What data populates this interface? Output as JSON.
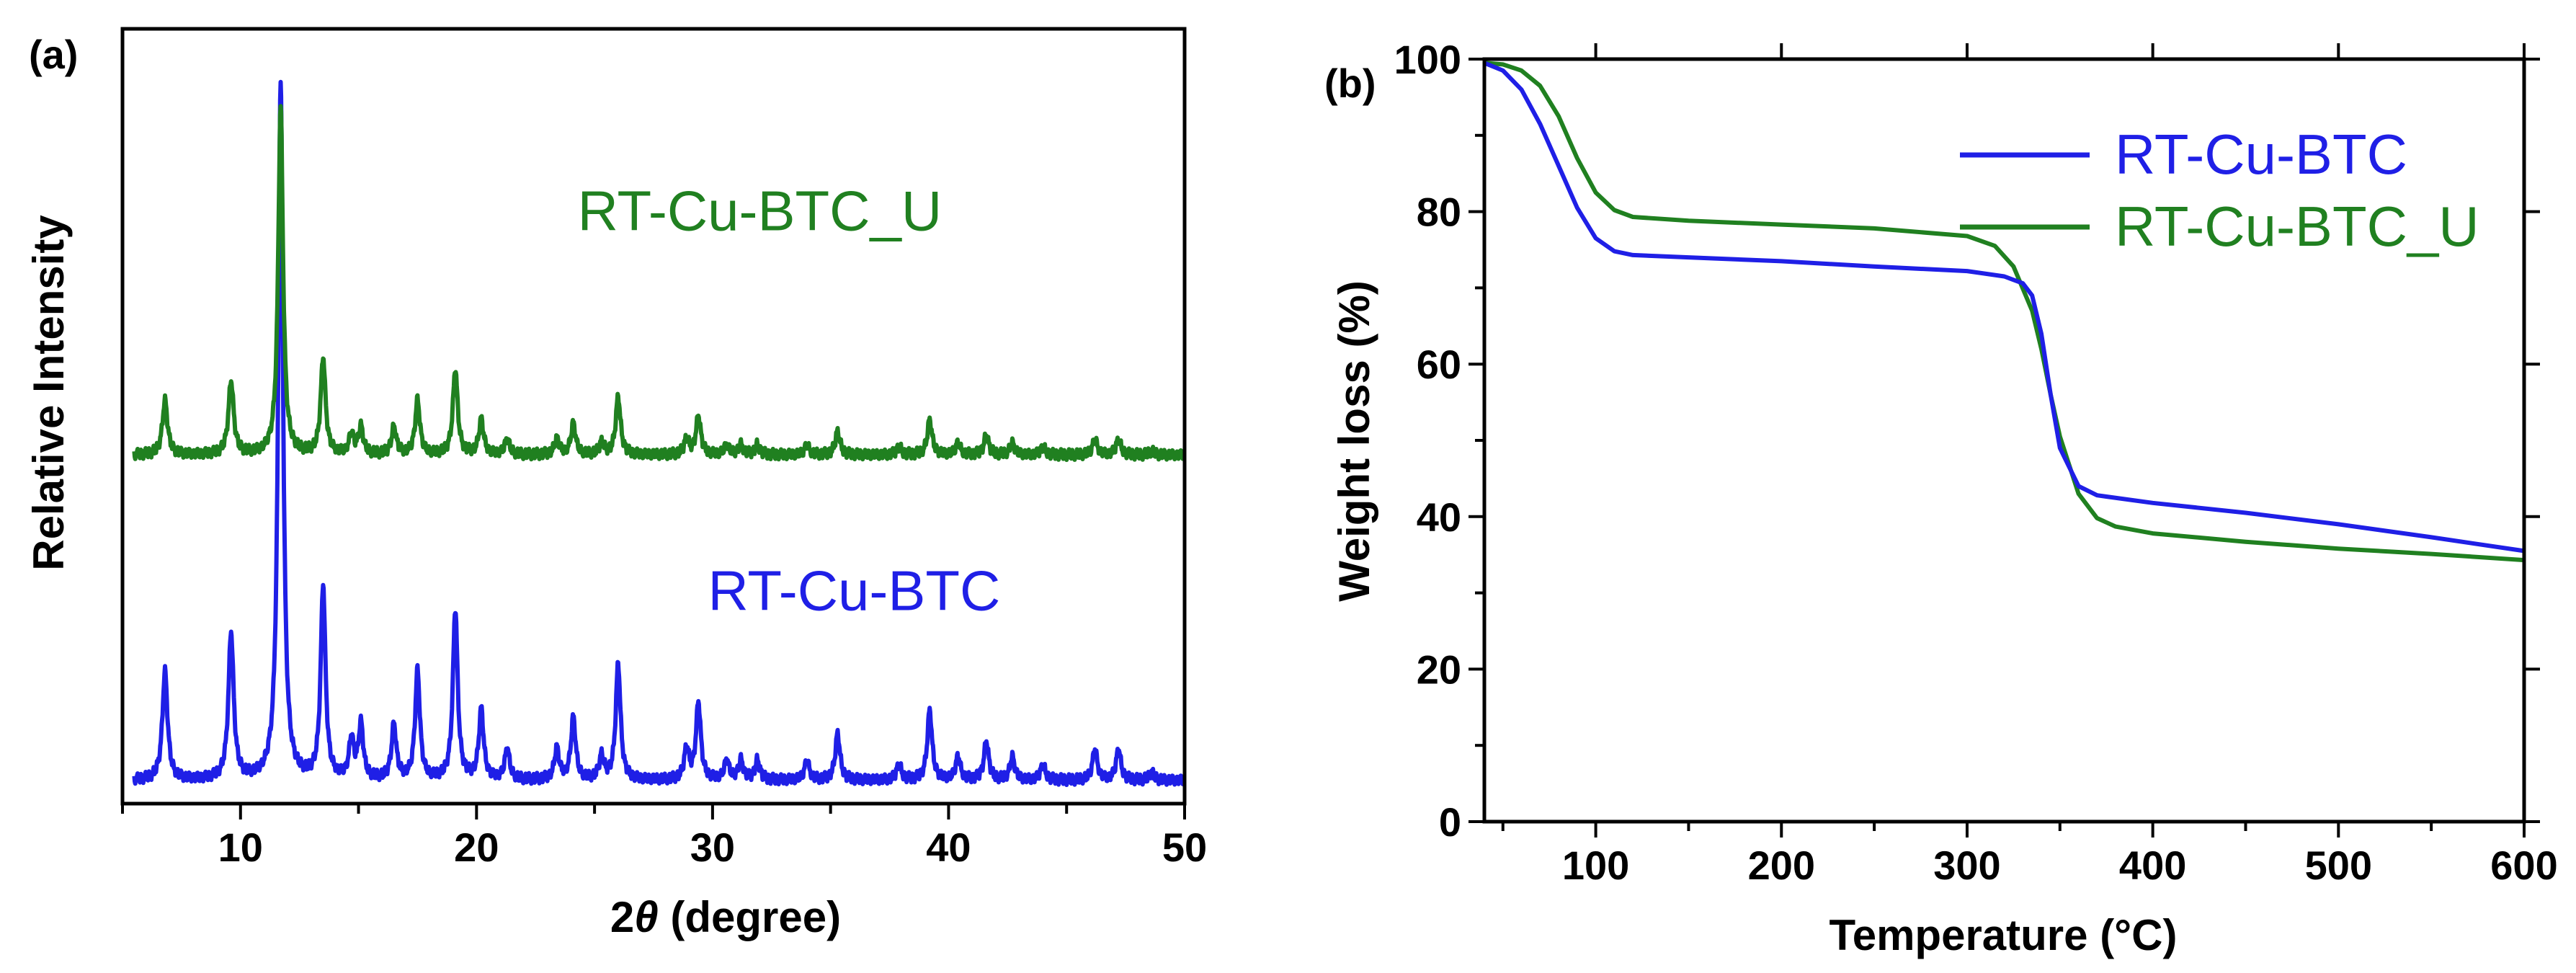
{
  "colors": {
    "blue": "#1f1fe6",
    "green": "#208020",
    "axis": "#000000"
  },
  "chart_data": [
    {
      "panel": "(a)",
      "type": "line",
      "title": "",
      "xlabel_pre": "2",
      "xlabel_theta": "θ",
      "xlabel_post": " (degree)",
      "ylabel": "Relative Intensity",
      "xlim": [
        5,
        50
      ],
      "xticks": [
        10,
        20,
        30,
        40,
        50
      ],
      "yticks_labeled": false,
      "grid": false,
      "peaks": [
        {
          "x": 6.8,
          "h": 0.14,
          "w": 0.13
        },
        {
          "x": 9.6,
          "h": 0.19,
          "w": 0.13
        },
        {
          "x": 11.7,
          "h": 0.9,
          "w": 0.12
        },
        {
          "x": 13.5,
          "h": 0.25,
          "w": 0.12
        },
        {
          "x": 14.7,
          "h": 0.05,
          "w": 0.12
        },
        {
          "x": 15.1,
          "h": 0.07,
          "w": 0.12
        },
        {
          "x": 16.5,
          "h": 0.07,
          "w": 0.12
        },
        {
          "x": 17.5,
          "h": 0.14,
          "w": 0.12
        },
        {
          "x": 19.1,
          "h": 0.22,
          "w": 0.12
        },
        {
          "x": 20.2,
          "h": 0.09,
          "w": 0.12
        },
        {
          "x": 21.3,
          "h": 0.04,
          "w": 0.12
        },
        {
          "x": 23.4,
          "h": 0.04,
          "w": 0.12
        },
        {
          "x": 24.1,
          "h": 0.08,
          "w": 0.12
        },
        {
          "x": 25.3,
          "h": 0.03,
          "w": 0.12
        },
        {
          "x": 26.0,
          "h": 0.15,
          "w": 0.12
        },
        {
          "x": 28.9,
          "h": 0.04,
          "w": 0.12
        },
        {
          "x": 29.4,
          "h": 0.1,
          "w": 0.12
        },
        {
          "x": 30.6,
          "h": 0.025,
          "w": 0.12
        },
        {
          "x": 31.2,
          "h": 0.025,
          "w": 0.12
        },
        {
          "x": 31.9,
          "h": 0.025,
          "w": 0.12
        },
        {
          "x": 34.0,
          "h": 0.025,
          "w": 0.12
        },
        {
          "x": 35.3,
          "h": 0.06,
          "w": 0.12
        },
        {
          "x": 37.9,
          "h": 0.02,
          "w": 0.12
        },
        {
          "x": 39.2,
          "h": 0.09,
          "w": 0.12
        },
        {
          "x": 40.4,
          "h": 0.03,
          "w": 0.12
        },
        {
          "x": 41.6,
          "h": 0.05,
          "w": 0.12
        },
        {
          "x": 42.7,
          "h": 0.03,
          "w": 0.12
        },
        {
          "x": 44.0,
          "h": 0.02,
          "w": 0.12
        },
        {
          "x": 46.2,
          "h": 0.04,
          "w": 0.12
        },
        {
          "x": 47.2,
          "h": 0.04,
          "w": 0.12
        },
        {
          "x": 48.6,
          "h": 0.01,
          "w": 0.12
        }
      ],
      "series": [
        {
          "name": "RT-Cu-BTC",
          "color": "#1f1fe6",
          "baseline": 0.03,
          "scale": 1.0,
          "label_pos": [
            36,
            0.25
          ]
        },
        {
          "name": "RT-Cu-BTC_U",
          "color": "#208020",
          "baseline": 0.45,
          "scale": 0.5,
          "label_pos": [
            32,
            0.74
          ]
        }
      ]
    },
    {
      "panel": "(b)",
      "type": "line",
      "title": "",
      "xlabel": "Temperature (",
      "xlabel_unit": "°C)",
      "ylabel": "Weight loss (%)",
      "xlim": [
        40,
        600
      ],
      "ylim": [
        0,
        100
      ],
      "xticks": [
        100,
        200,
        300,
        400,
        500,
        600
      ],
      "yticks": [
        0,
        20,
        40,
        60,
        80,
        100
      ],
      "grid": false,
      "legend": "top-right",
      "series": [
        {
          "name": "RT-Cu-BTC",
          "color": "#1f1fe6",
          "x": [
            40,
            50,
            60,
            70,
            80,
            90,
            100,
            110,
            120,
            150,
            200,
            250,
            300,
            320,
            330,
            335,
            340,
            345,
            350,
            360,
            370,
            400,
            450,
            500,
            550,
            600
          ],
          "y": [
            99.5,
            98.5,
            96,
            91.5,
            86,
            80.5,
            76.5,
            74.8,
            74.3,
            74.0,
            73.5,
            72.8,
            72.2,
            71.5,
            70.6,
            69,
            64,
            56,
            49,
            44,
            42.8,
            41.8,
            40.5,
            39.0,
            37.3,
            35.5
          ]
        },
        {
          "name": "RT-Cu-BTC_U",
          "color": "#208020",
          "x": [
            40,
            50,
            60,
            70,
            80,
            90,
            100,
            110,
            120,
            150,
            200,
            250,
            300,
            315,
            325,
            335,
            340,
            345,
            350,
            360,
            370,
            380,
            400,
            450,
            500,
            550,
            600
          ],
          "y": [
            99.5,
            99.3,
            98.5,
            96.5,
            92.5,
            87,
            82.5,
            80.2,
            79.3,
            78.8,
            78.3,
            77.8,
            76.8,
            75.5,
            72.8,
            67,
            62,
            56,
            50.5,
            43,
            39.8,
            38.7,
            37.8,
            36.7,
            35.8,
            35.1,
            34.3
          ]
        }
      ]
    }
  ]
}
